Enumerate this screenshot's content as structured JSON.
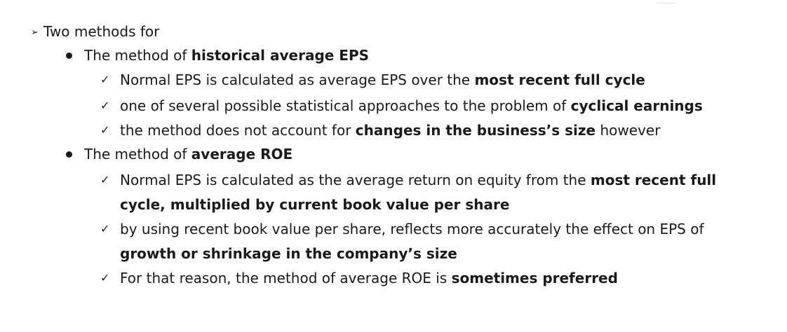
{
  "heading": {
    "marker": "➢",
    "text": "Two methods for"
  },
  "methods": [
    {
      "label_plain": "The method of ",
      "label_bold": "historical  average EPS",
      "points": [
        {
          "lines": [
            [
              {
                "t": "Normal EPS is calculated as average EPS over the ",
                "b": false
              },
              {
                "t": "most recent full cycle",
                "b": true
              }
            ]
          ]
        },
        {
          "lines": [
            [
              {
                "t": "one of several possible statistical approaches to the problem of ",
                "b": false
              },
              {
                "t": "cyclical earnings",
                "b": true
              }
            ]
          ]
        },
        {
          "lines": [
            [
              {
                "t": "the method does not account for ",
                "b": false
              },
              {
                "t": "changes in the business’s  size",
                "b": true
              },
              {
                "t": " however",
                "b": false
              }
            ]
          ]
        }
      ]
    },
    {
      "label_plain": "The method of ",
      "label_bold": "average ROE",
      "points": [
        {
          "lines": [
            [
              {
                "t": "Normal EPS is calculated as the average return on equity from the ",
                "b": false
              },
              {
                "t": "most recent full",
                "b": true
              }
            ],
            [
              {
                "t": "cycle, multiplied  by current book value per share",
                "b": true
              }
            ]
          ]
        },
        {
          "lines": [
            [
              {
                "t": "by using recent book value per share, reflects more accurately the effect on EPS of",
                "b": false
              }
            ],
            [
              {
                "t": "growth or shrinkage in the company’s size",
                "b": true
              }
            ]
          ]
        },
        {
          "lines": [
            [
              {
                "t": "For that reason, the method of average ROE is ",
                "b": false
              },
              {
                "t": "sometimes preferred",
                "b": true
              }
            ]
          ]
        }
      ]
    }
  ],
  "check_marker": "✓"
}
